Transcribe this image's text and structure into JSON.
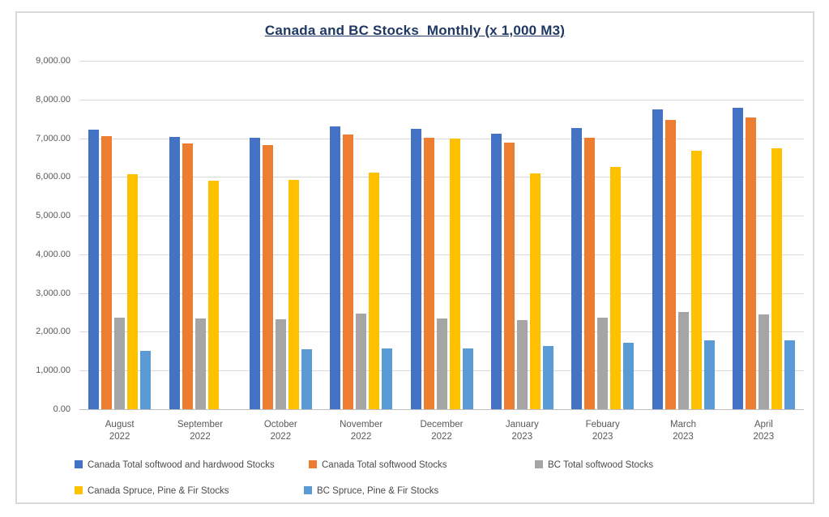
{
  "chart_data": {
    "type": "bar",
    "title": "Canada and BC Stocks  Monthly (x 1,000 M3)",
    "title_color": "#1f3864",
    "categories": [
      {
        "month": "August",
        "year": "2022"
      },
      {
        "month": "September",
        "year": "2022"
      },
      {
        "month": "October",
        "year": "2022"
      },
      {
        "month": "November",
        "year": "2022"
      },
      {
        "month": "December",
        "year": "2022"
      },
      {
        "month": "January",
        "year": "2023"
      },
      {
        "month": "Febuary",
        "year": "2023"
      },
      {
        "month": "March",
        "year": "2023"
      },
      {
        "month": "April",
        "year": "2023"
      }
    ],
    "series": [
      {
        "name": "Canada Total softwood and hardwood Stocks",
        "color": "#4472c4",
        "values": [
          7220,
          7040,
          7010,
          7300,
          7250,
          7110,
          7260,
          7750,
          7790
        ]
      },
      {
        "name": "Canada Total softwood Stocks",
        "color": "#ed7d31",
        "values": [
          7050,
          6870,
          6820,
          7100,
          7010,
          6880,
          7010,
          7470,
          7530
        ]
      },
      {
        "name": "BC Total softwood Stocks",
        "color": "#a5a5a5",
        "values": [
          2370,
          2350,
          2330,
          2460,
          2350,
          2310,
          2360,
          2510,
          2450
        ]
      },
      {
        "name": "Canada Spruce, Pine & Fir Stocks",
        "color": "#ffc000",
        "values": [
          6060,
          5910,
          5920,
          6110,
          7000,
          6100,
          6250,
          6670,
          6730
        ]
      },
      {
        "name": "BC Spruce, Pine & Fir Stocks",
        "color": "#5b9bd5",
        "values": [
          1500,
          null,
          1540,
          1580,
          1560,
          1640,
          1710,
          1780,
          1780
        ]
      }
    ],
    "ylim": [
      0,
      9000
    ],
    "ytick_step": 1000,
    "ytick_labels": [
      "0.00",
      "1,000.00",
      "2,000.00",
      "3,000.00",
      "4,000.00",
      "5,000.00",
      "6,000.00",
      "7,000.00",
      "8,000.00",
      "9,000.00"
    ],
    "grid": true,
    "legend_position": "bottom",
    "colors": {
      "gridline": "#d9d9d9",
      "axis_line": "#c0c0c0",
      "tick_text": "#595959",
      "legend_text": "#4a4a4a",
      "frame_border": "#d9d9d9"
    }
  }
}
